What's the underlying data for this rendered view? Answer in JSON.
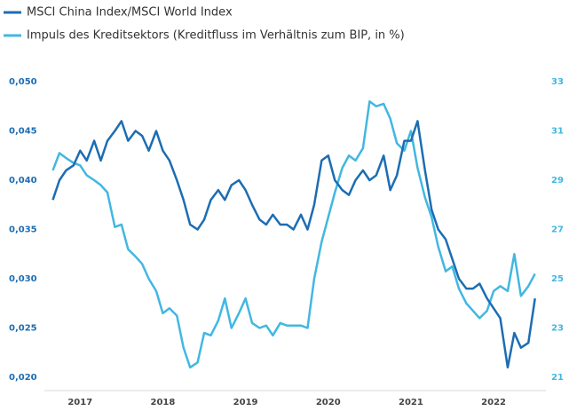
{
  "chart_data": {
    "type": "line",
    "x": [
      2016.67,
      2016.75,
      2016.83,
      2016.92,
      2017,
      2017.08,
      2017.17,
      2017.25,
      2017.33,
      2017.42,
      2017.5,
      2017.58,
      2017.67,
      2017.75,
      2017.83,
      2017.92,
      2018,
      2018.08,
      2018.17,
      2018.25,
      2018.33,
      2018.42,
      2018.5,
      2018.58,
      2018.67,
      2018.75,
      2018.83,
      2018.92,
      2019,
      2019.08,
      2019.17,
      2019.25,
      2019.33,
      2019.42,
      2019.5,
      2019.58,
      2019.67,
      2019.75,
      2019.83,
      2019.92,
      2020,
      2020.08,
      2020.17,
      2020.25,
      2020.33,
      2020.42,
      2020.5,
      2020.58,
      2020.67,
      2020.75,
      2020.83,
      2020.92,
      2021,
      2021.08,
      2021.17,
      2021.25,
      2021.33,
      2021.42,
      2021.5,
      2021.58,
      2021.67,
      2021.75,
      2021.83,
      2021.92,
      2022,
      2022.08,
      2022.17,
      2022.25,
      2022.33,
      2022.42,
      2022.5
    ],
    "series": [
      {
        "name": "MSCI China Index/MSCI World Index",
        "color": "#1c6db3",
        "values": [
          0.038,
          0.04,
          0.041,
          0.0415,
          0.043,
          0.042,
          0.044,
          0.042,
          0.044,
          0.045,
          0.046,
          0.044,
          0.045,
          0.0445,
          0.043,
          0.045,
          0.043,
          0.042,
          0.04,
          0.038,
          0.0355,
          0.035,
          0.036,
          0.038,
          0.039,
          0.038,
          0.0395,
          0.04,
          0.039,
          0.0375,
          0.036,
          0.0355,
          0.0365,
          0.0355,
          0.0355,
          0.035,
          0.0365,
          0.035,
          0.0375,
          0.042,
          0.0425,
          0.04,
          0.039,
          0.0385,
          0.04,
          0.041,
          0.04,
          0.0405,
          0.0425,
          0.039,
          0.0405,
          0.044,
          0.044,
          0.046,
          0.041,
          0.037,
          0.035,
          0.034,
          0.032,
          0.03,
          0.029,
          0.029,
          0.0295,
          0.028,
          0.027,
          0.026,
          0.021,
          0.0245,
          0.023,
          0.0235,
          0.028
        ]
      },
      {
        "name": "Impuls des Kreditsektors (Kreditfluss im Verhältnis zum BIP, in %)",
        "color": "#42b7e2",
        "axis": "y2",
        "values": [
          29.4,
          30.1,
          29.9,
          29.7,
          29.6,
          29.2,
          29.0,
          28.8,
          28.5,
          27.1,
          27.2,
          26.2,
          25.9,
          25.6,
          25.0,
          24.5,
          23.6,
          23.8,
          23.5,
          22.2,
          21.4,
          21.6,
          22.8,
          22.7,
          23.3,
          24.2,
          23.0,
          23.6,
          24.2,
          23.2,
          23.0,
          23.1,
          22.7,
          23.2,
          23.1,
          23.1,
          23.1,
          23.0,
          25.0,
          26.5,
          27.5,
          28.5,
          29.5,
          30.0,
          29.8,
          30.3,
          32.2,
          32.0,
          32.1,
          31.5,
          30.5,
          30.2,
          31.0,
          29.5,
          28.3,
          27.5,
          26.3,
          25.3,
          25.5,
          24.6,
          24.0,
          23.7,
          23.4,
          23.7,
          24.5,
          24.7,
          24.5,
          26.0,
          24.3,
          24.7,
          25.2
        ]
      }
    ],
    "xlim": [
      2016.6,
      2022.6
    ],
    "xticks": [
      2017,
      2018,
      2019,
      2020,
      2021,
      2022
    ],
    "ylim": [
      0.02,
      0.05
    ],
    "yticks": [
      {
        "value": 0.02,
        "label": "0,020"
      },
      {
        "value": 0.025,
        "label": "0,025"
      },
      {
        "value": 0.03,
        "label": "0,030"
      },
      {
        "value": 0.035,
        "label": "0,035"
      },
      {
        "value": 0.04,
        "label": "0,040"
      },
      {
        "value": 0.045,
        "label": "0,045"
      },
      {
        "value": 0.05,
        "label": "0,050"
      }
    ],
    "y2lim": [
      21,
      33
    ],
    "y2ticks": [
      21,
      23,
      25,
      27,
      29,
      31,
      33
    ],
    "legend": "top-left",
    "grid": false
  }
}
